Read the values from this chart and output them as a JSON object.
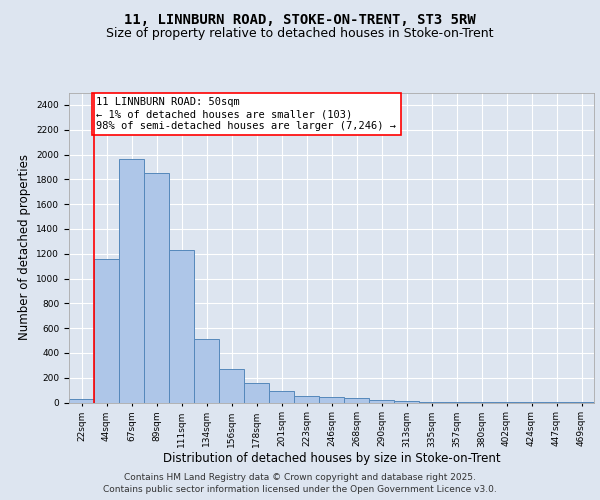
{
  "title1": "11, LINNBURN ROAD, STOKE-ON-TRENT, ST3 5RW",
  "title2": "Size of property relative to detached houses in Stoke-on-Trent",
  "xlabel": "Distribution of detached houses by size in Stoke-on-Trent",
  "ylabel": "Number of detached properties",
  "categories": [
    "22sqm",
    "44sqm",
    "67sqm",
    "89sqm",
    "111sqm",
    "134sqm",
    "156sqm",
    "178sqm",
    "201sqm",
    "223sqm",
    "246sqm",
    "268sqm",
    "290sqm",
    "313sqm",
    "335sqm",
    "357sqm",
    "380sqm",
    "402sqm",
    "424sqm",
    "447sqm",
    "469sqm"
  ],
  "values": [
    30,
    1160,
    1960,
    1850,
    1230,
    515,
    270,
    155,
    90,
    50,
    42,
    35,
    22,
    15,
    5,
    5,
    3,
    2,
    1,
    1,
    1
  ],
  "bar_color": "#aec6e8",
  "bar_edge_color": "#5588bb",
  "vline_x": 0.5,
  "annotation_text": "11 LINNBURN ROAD: 50sqm\n← 1% of detached houses are smaller (103)\n98% of semi-detached houses are larger (7,246) →",
  "annotation_box_color": "white",
  "annotation_box_edge": "red",
  "vline_color": "red",
  "footer1": "Contains HM Land Registry data © Crown copyright and database right 2025.",
  "footer2": "Contains public sector information licensed under the Open Government Licence v3.0.",
  "ylim": [
    0,
    2500
  ],
  "yticks": [
    0,
    200,
    400,
    600,
    800,
    1000,
    1200,
    1400,
    1600,
    1800,
    2000,
    2200,
    2400
  ],
  "bg_color": "#dde5f0",
  "plot_bg_color": "#dde5f0",
  "title_fontsize": 10,
  "subtitle_fontsize": 9,
  "tick_fontsize": 6.5,
  "label_fontsize": 8.5,
  "footer_fontsize": 6.5,
  "annotation_fontsize": 7.5
}
